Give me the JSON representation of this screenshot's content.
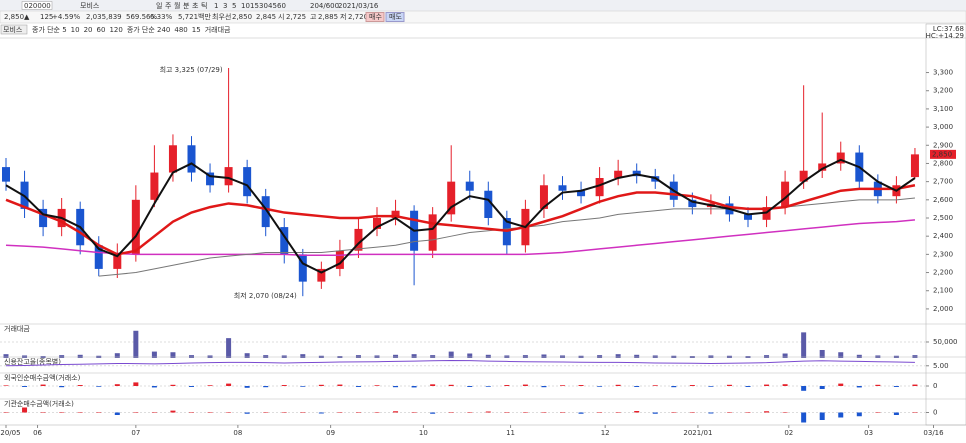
{
  "toolbar": {
    "code": "020000",
    "name": "모비스",
    "periods": [
      "일",
      "주",
      "월",
      "분",
      "초",
      "틱"
    ],
    "minutes": [
      "1",
      "3",
      "5",
      "10",
      "15",
      "30",
      "45",
      "60"
    ],
    "count": "204/600",
    "date": "2021/03/16"
  },
  "quote": {
    "price": "2,850▲",
    "change": "125",
    "rate": "+4.59%",
    "volume": "2,035,839",
    "vol_ratio": "569.56%",
    "turnover": "6.33%",
    "amount": "5,721백만",
    "best": "최우선",
    "ask": "2,850",
    "bid": "2,845",
    "open_label": "시",
    "open": "2,725",
    "high_label": "고",
    "high": "2,885",
    "low_label": "저",
    "low": "2,720",
    "buy": "매수",
    "sell": "매도"
  },
  "chart_data": [
    {
      "type": "candlestick",
      "title": "모비스",
      "legend": [
        {
          "text": "종가 단순 5",
          "color": "#333"
        },
        {
          "text": "10",
          "color": "#2b5fd9"
        },
        {
          "text": "20",
          "color": "#e0a000"
        },
        {
          "text": "60",
          "color": "#e03030"
        },
        {
          "text": "120",
          "color": "#888"
        },
        {
          "text": "종가 단순 240",
          "color": "#d030c0"
        },
        {
          "text": "480",
          "color": "#2b5fd9"
        },
        {
          "text": "15",
          "color": "#e08000"
        },
        {
          "text": "거래대금",
          "color": "#2b5fd9"
        }
      ],
      "corner_labels": [
        "LC:37.68",
        "HC:+14.29"
      ],
      "last_label": "2,850",
      "annotations": [
        {
          "text": "최고 3,325 (07/29)",
          "color": "#d00000"
        },
        {
          "text": "최저 2,070 (08/24)",
          "color": "#1a2ad0"
        }
      ],
      "up_color": "#e5202a",
      "down_color": "#1a55d0",
      "open": [
        2780,
        2700,
        2550,
        2450,
        2550,
        2350,
        2220,
        2300,
        2600,
        2750,
        2900,
        2750,
        2680,
        2780,
        2620,
        2450,
        2300,
        2150,
        2220,
        2320,
        2440,
        2500,
        2540,
        2320,
        2520,
        2700,
        2650,
        2500,
        2350,
        2550,
        2680,
        2650,
        2620,
        2720,
        2760,
        2730,
        2700,
        2600,
        2560,
        2580,
        2520,
        2490,
        2560,
        2700,
        2760,
        2800,
        2860,
        2700,
        2620,
        2725
      ],
      "high": [
        2830,
        2760,
        2600,
        2610,
        2590,
        2400,
        2360,
        2680,
        2900,
        2960,
        2950,
        2800,
        3325,
        2820,
        2660,
        2500,
        2330,
        2260,
        2380,
        2500,
        2560,
        2600,
        2570,
        2560,
        2900,
        2760,
        2700,
        2540,
        2600,
        2740,
        2730,
        2700,
        2780,
        2820,
        2800,
        2770,
        2740,
        2640,
        2630,
        2620,
        2560,
        2620,
        2760,
        3230,
        3080,
        2920,
        2900,
        2740,
        2730,
        2885
      ],
      "low": [
        2650,
        2500,
        2400,
        2400,
        2300,
        2180,
        2170,
        2260,
        2560,
        2700,
        2700,
        2640,
        2640,
        2580,
        2400,
        2250,
        2070,
        2110,
        2180,
        2280,
        2400,
        2460,
        2130,
        2280,
        2480,
        2600,
        2460,
        2300,
        2310,
        2500,
        2600,
        2580,
        2580,
        2680,
        2690,
        2660,
        2560,
        2520,
        2520,
        2480,
        2450,
        2450,
        2520,
        2660,
        2720,
        2760,
        2660,
        2580,
        2580,
        2720
      ],
      "close": [
        2700,
        2550,
        2450,
        2550,
        2350,
        2220,
        2300,
        2600,
        2750,
        2900,
        2750,
        2680,
        2780,
        2620,
        2450,
        2300,
        2150,
        2220,
        2320,
        2440,
        2500,
        2540,
        2320,
        2520,
        2700,
        2650,
        2500,
        2350,
        2550,
        2680,
        2650,
        2620,
        2720,
        2760,
        2730,
        2700,
        2600,
        2560,
        2580,
        2520,
        2490,
        2560,
        2700,
        2760,
        2800,
        2860,
        2700,
        2620,
        2680,
        2850
      ],
      "series": [
        {
          "name": "240",
          "color": "#d030c0",
          "width": 1.5,
          "values": [
            2350,
            2345,
            2340,
            2330,
            2320,
            2310,
            2305,
            2300,
            2300,
            2300,
            2300,
            2300,
            2300,
            2300,
            2300,
            2300,
            2295,
            2295,
            2295,
            2300,
            2300,
            2300,
            2300,
            2300,
            2300,
            2300,
            2300,
            2300,
            2300,
            2305,
            2310,
            2320,
            2330,
            2340,
            2350,
            2360,
            2370,
            2380,
            2390,
            2400,
            2410,
            2420,
            2430,
            2440,
            2450,
            2460,
            2470,
            2475,
            2480,
            2490
          ]
        },
        {
          "name": "120",
          "color": "#777",
          "width": 1,
          "values": [
            null,
            null,
            null,
            null,
            null,
            2180,
            2190,
            2200,
            2220,
            2240,
            2260,
            2280,
            2290,
            2300,
            2310,
            2310,
            2310,
            2310,
            2320,
            2330,
            2340,
            2350,
            2370,
            2380,
            2400,
            2420,
            2430,
            2440,
            2450,
            2460,
            2480,
            2490,
            2500,
            2520,
            2530,
            2540,
            2550,
            2550,
            2550,
            2550,
            2550,
            2550,
            2560,
            2570,
            2580,
            2590,
            2600,
            2600,
            2600,
            2610
          ]
        },
        {
          "name": "60",
          "color": "#e01818",
          "width": 2.5,
          "values": [
            2600,
            2560,
            2520,
            2480,
            2420,
            2350,
            2300,
            2320,
            2400,
            2480,
            2530,
            2560,
            2580,
            2570,
            2550,
            2530,
            2520,
            2510,
            2500,
            2500,
            2510,
            2510,
            2490,
            2470,
            2460,
            2450,
            2440,
            2430,
            2450,
            2480,
            2510,
            2550,
            2590,
            2620,
            2640,
            2640,
            2630,
            2620,
            2590,
            2560,
            2550,
            2550,
            2560,
            2590,
            2620,
            2650,
            2660,
            2660,
            2660,
            2680
          ]
        },
        {
          "name": "5",
          "color": "#111",
          "width": 2,
          "values": [
            2680,
            2620,
            2520,
            2500,
            2450,
            2330,
            2290,
            2400,
            2580,
            2750,
            2800,
            2730,
            2720,
            2680,
            2550,
            2400,
            2250,
            2200,
            2250,
            2360,
            2450,
            2500,
            2430,
            2440,
            2560,
            2620,
            2600,
            2480,
            2450,
            2560,
            2640,
            2650,
            2680,
            2720,
            2740,
            2720,
            2650,
            2590,
            2570,
            2550,
            2520,
            2530,
            2610,
            2700,
            2770,
            2820,
            2780,
            2700,
            2650,
            2720
          ]
        }
      ],
      "ylim": [
        1950,
        3490
      ],
      "yticks": [
        {
          "value": 2000,
          "label": "2,000"
        },
        {
          "value": 2100,
          "label": "2,100"
        },
        {
          "value": 2200,
          "label": "2,200"
        },
        {
          "value": 2300,
          "label": "2,300"
        },
        {
          "value": 2400,
          "label": "2,400"
        },
        {
          "value": 2500,
          "label": "2,500"
        },
        {
          "value": 2600,
          "label": "2,600"
        },
        {
          "value": 2700,
          "label": "2,700"
        },
        {
          "value": 2800,
          "label": "2,800"
        },
        {
          "value": 2900,
          "label": "2,900"
        },
        {
          "value": 3000,
          "label": "3,000"
        },
        {
          "value": 3100,
          "label": "3,100"
        },
        {
          "value": 3200,
          "label": "3,200"
        },
        {
          "value": 3300,
          "label": "3,300"
        }
      ],
      "xticks": [
        {
          "value": 0,
          "label": "2020/05"
        },
        {
          "value": 1.7,
          "label": "06"
        },
        {
          "value": 7,
          "label": "07"
        },
        {
          "value": 12.5,
          "label": "08"
        },
        {
          "value": 17.5,
          "label": "09"
        },
        {
          "value": 22.5,
          "label": "10"
        },
        {
          "value": 27.2,
          "label": "11"
        },
        {
          "value": 32.3,
          "label": "12"
        },
        {
          "value": 37.3,
          "label": "2021/01"
        },
        {
          "value": 42.2,
          "label": "02"
        },
        {
          "value": 46.5,
          "label": "03"
        },
        {
          "value": 50,
          "label": "03/16"
        }
      ]
    },
    {
      "type": "bar",
      "title": "거래대금",
      "color": "#5a5aa8",
      "ylim": [
        0,
        103000
      ],
      "yticks": [
        {
          "value": 50000,
          "label": "50,000"
        }
      ],
      "values": [
        12000,
        8000,
        6000,
        9000,
        10000,
        7000,
        15000,
        85000,
        20000,
        18000,
        9000,
        8000,
        62000,
        15000,
        9000,
        8000,
        12000,
        7000,
        6000,
        9000,
        8000,
        10000,
        12000,
        9000,
        20000,
        14000,
        10000,
        8000,
        9000,
        11000,
        8000,
        7000,
        9000,
        12000,
        10000,
        8000,
        7000,
        6000,
        8000,
        7000,
        6000,
        9000,
        14000,
        80000,
        25000,
        18000,
        10000,
        8000,
        7000,
        9000
      ]
    },
    {
      "type": "line",
      "title": "신용잔고율(종목별)",
      "color": "#7a4ad0",
      "ylim": [
        4.6,
        5.5
      ],
      "yticks": [
        {
          "value": 5,
          "label": "5.00"
        }
      ],
      "values": [
        5.0,
        5.02,
        5.05,
        5.08,
        5.1,
        5.12,
        5.15,
        5.14,
        5.12,
        5.15,
        5.18,
        5.2,
        5.22,
        5.22,
        5.2,
        5.18,
        5.2,
        5.22,
        5.24,
        5.25,
        5.26,
        5.28,
        5.3,
        5.32,
        5.34,
        5.33,
        5.3,
        5.28,
        5.26,
        5.25,
        5.24,
        5.23,
        5.22,
        5.22,
        5.2,
        5.18,
        5.17,
        5.16,
        5.15,
        5.16,
        5.18,
        5.2,
        5.25,
        5.3,
        5.32,
        5.3,
        5.28,
        5.26,
        5.24,
        5.22
      ]
    },
    {
      "type": "bar",
      "title": "외국인순매수금액(거래소)",
      "pos_color": "#e5202a",
      "neg_color": "#1a55d0",
      "ylim": [
        -100,
        100
      ],
      "yticks": [
        0
      ],
      "values": [
        5,
        -8,
        12,
        -10,
        8,
        -6,
        15,
        30,
        -12,
        10,
        -8,
        6,
        20,
        -15,
        -10,
        8,
        -6,
        10,
        12,
        -8,
        6,
        -10,
        -12,
        14,
        10,
        -8,
        -6,
        8,
        12,
        -10,
        6,
        8,
        -6,
        10,
        -8,
        6,
        -10,
        8,
        -6,
        10,
        -8,
        12,
        15,
        -40,
        -25,
        20,
        -12,
        10,
        -8,
        12
      ]
    },
    {
      "type": "bar",
      "title": "기관순매수금액(거래소)",
      "pos_color": "#e5202a",
      "neg_color": "#1a55d0",
      "ylim": [
        -100,
        100
      ],
      "yticks": [
        0
      ],
      "values": [
        0,
        40,
        0,
        0,
        0,
        0,
        -20,
        0,
        0,
        15,
        0,
        0,
        0,
        -10,
        0,
        0,
        0,
        -8,
        0,
        0,
        0,
        10,
        0,
        -10,
        0,
        0,
        8,
        0,
        0,
        0,
        0,
        -10,
        0,
        0,
        12,
        -10,
        0,
        0,
        -8,
        0,
        0,
        10,
        0,
        -80,
        -60,
        -40,
        -30,
        0,
        -20,
        0
      ]
    }
  ]
}
